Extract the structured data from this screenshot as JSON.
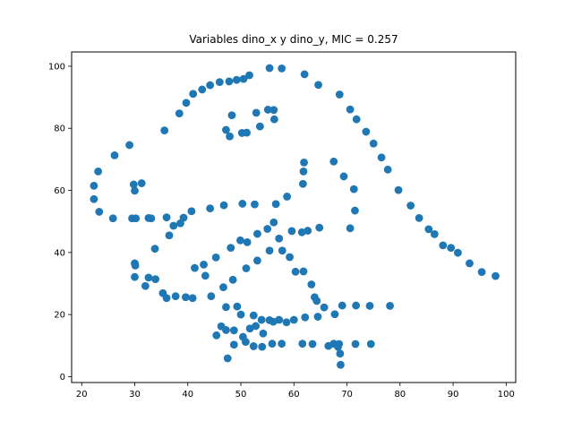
{
  "chart_data": {
    "type": "scatter",
    "title": "Variables dino_x y dino_y, MIC = 0.257",
    "xlabel": "",
    "ylabel": "",
    "xlim": [
      18.1,
      101.8
    ],
    "ylim": [
      -1.9,
      104.6
    ],
    "xticks": [
      20,
      30,
      40,
      50,
      60,
      70,
      80,
      90,
      100
    ],
    "yticks": [
      0,
      20,
      40,
      60,
      80,
      100
    ],
    "grid": false,
    "marker_color": "#1f77b4",
    "series": [
      {
        "x": [
          22.3,
          23.1,
          22.3,
          23.3,
          25.9,
          26.2,
          29.0,
          29.8,
          30.0,
          30.2,
          31.3,
          32.6,
          33.8,
          35.6,
          38.4,
          39.7,
          41.0,
          42.7,
          44.2,
          46.0,
          47.8,
          49.2,
          50.5,
          51.6,
          55.4,
          57.7,
          62.0,
          64.6,
          68.6,
          70.6,
          71.8,
          73.6,
          75.0,
          76.5,
          77.7,
          79.7,
          82.0,
          83.6,
          85.4,
          86.5,
          88.1,
          89.6,
          90.9,
          93.1,
          95.4,
          98.0,
          47.2,
          47.9,
          48.3,
          50.2,
          51.1,
          52.9,
          53.6,
          55.1,
          56.3,
          56.2,
          29.5,
          33.1,
          36.0,
          39.2,
          40.7,
          44.2,
          46.8,
          50.3,
          52.6,
          56.6,
          58.7,
          61.7,
          61.8,
          61.9,
          67.5,
          69.4,
          71.3,
          71.5,
          70.6,
          32.6,
          36.5,
          37.3,
          38.6,
          41.3,
          43.0,
          45.3,
          48.1,
          49.9,
          51.2,
          53.1,
          55.0,
          56.2,
          57.2,
          59.6,
          61.5,
          62.6,
          64.8,
          33.9,
          30.0,
          30.1,
          30.0,
          32.0,
          35.3,
          36.0,
          37.7,
          39.6,
          40.9,
          43.3,
          44.4,
          46.7,
          48.5,
          51.0,
          53.1,
          55.4,
          57.8,
          59.2,
          60.3,
          61.8,
          63.3,
          63.9,
          64.3,
          65.7,
          47.2,
          49.3,
          50.0,
          52.4,
          53.9,
          55.4,
          57.2,
          60.0,
          62.1,
          64.5,
          67.7,
          69.1,
          71.7,
          74.3,
          78.1,
          45.4,
          46.3,
          47.2,
          48.7,
          50.4,
          51.7,
          52.8,
          54.2,
          56.1,
          58.6,
          61.6,
          63.5,
          66.5,
          68.5,
          71.6,
          74.5,
          47.5,
          48.7,
          50.9,
          52.4,
          54.0,
          55.9,
          57.7,
          67.5,
          68.3,
          68.7,
          68.8
        ],
        "y": [
          61.5,
          66.1,
          57.2,
          53.1,
          51.0,
          71.3,
          74.6,
          61.9,
          59.9,
          51.0,
          62.3,
          51.1,
          41.2,
          79.3,
          84.8,
          88.2,
          91.1,
          92.5,
          93.9,
          94.9,
          95.1,
          95.6,
          95.9,
          97.1,
          99.4,
          99.3,
          97.4,
          94.0,
          90.9,
          86.1,
          82.9,
          78.9,
          75.1,
          70.6,
          66.7,
          60.1,
          55.1,
          51.1,
          47.5,
          45.9,
          42.3,
          41.5,
          39.9,
          36.5,
          33.7,
          32.4,
          79.5,
          77.4,
          84.2,
          78.5,
          78.6,
          85.0,
          80.6,
          86.0,
          82.9,
          85.9,
          51.0,
          51.0,
          51.3,
          51.2,
          53.3,
          54.2,
          55.2,
          55.7,
          55.5,
          55.6,
          58.0,
          62.1,
          66.1,
          69.0,
          69.3,
          64.5,
          60.4,
          53.5,
          47.8,
          31.9,
          45.5,
          48.6,
          49.4,
          35.0,
          36.1,
          38.4,
          41.5,
          43.9,
          43.3,
          46.0,
          47.6,
          49.7,
          44.5,
          46.9,
          46.5,
          47.0,
          48.0,
          31.4,
          36.5,
          35.8,
          32.1,
          29.2,
          26.9,
          25.3,
          25.9,
          25.6,
          25.3,
          32.5,
          25.9,
          28.8,
          31.2,
          34.9,
          37.4,
          40.6,
          40.6,
          38.5,
          33.8,
          33.9,
          29.7,
          25.6,
          24.4,
          22.3,
          22.4,
          22.6,
          20.0,
          19.7,
          18.3,
          18.2,
          18.3,
          18.3,
          19.1,
          19.3,
          20.1,
          22.9,
          22.9,
          22.8,
          22.8,
          13.3,
          16.2,
          15.0,
          14.9,
          12.8,
          15.5,
          16.3,
          13.9,
          17.7,
          17.5,
          10.6,
          10.5,
          9.9,
          10.5,
          10.5,
          10.5,
          5.9,
          10.3,
          11.2,
          9.8,
          9.6,
          10.6,
          10.6,
          10.6,
          9.6,
          7.4,
          3.8
        ]
      }
    ]
  }
}
